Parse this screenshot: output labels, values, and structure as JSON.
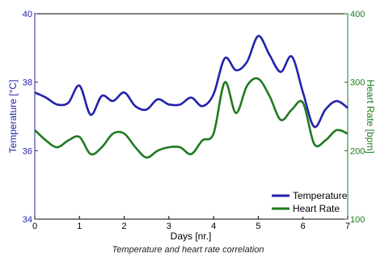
{
  "caption": "Temperature and heart rate correlation",
  "colors": {
    "temperature": "#2222aa",
    "heart_rate": "#207a20",
    "axis": "#000000"
  },
  "chart_data": {
    "type": "line",
    "xlabel": "Days [nr.]",
    "xlim": [
      0,
      7
    ],
    "x_ticks": [
      "0",
      "1",
      "2",
      "3",
      "4",
      "5",
      "6",
      "7"
    ],
    "grid": false,
    "legend_position": "bottom-right",
    "y_left": {
      "label": "Temperature [°C]",
      "lim": [
        34,
        40
      ],
      "ticks": [
        "34",
        "36",
        "38",
        "40"
      ],
      "color": "#2222aa"
    },
    "y_right": {
      "label": "Heart Rate [bpm]",
      "lim": [
        100,
        400
      ],
      "ticks": [
        "100",
        "200",
        "300",
        "400"
      ],
      "color": "#207a20"
    },
    "series": [
      {
        "name": "Temperature",
        "axis": "left",
        "color": "#2222aa",
        "x": [
          0,
          0.25,
          0.5,
          0.75,
          1.0,
          1.25,
          1.5,
          1.75,
          2.0,
          2.25,
          2.5,
          2.75,
          3.0,
          3.25,
          3.5,
          3.75,
          4.0,
          4.25,
          4.5,
          4.75,
          5.0,
          5.25,
          5.5,
          5.75,
          6.0,
          6.25,
          6.5,
          6.75,
          7.0
        ],
        "y": [
          37.7,
          37.55,
          37.35,
          37.4,
          37.9,
          37.05,
          37.6,
          37.45,
          37.7,
          37.3,
          37.2,
          37.5,
          37.35,
          37.35,
          37.55,
          37.3,
          37.65,
          38.7,
          38.35,
          38.6,
          39.35,
          38.8,
          38.3,
          38.75,
          37.7,
          36.7,
          37.2,
          37.45,
          37.25
        ]
      },
      {
        "name": "Heart Rate",
        "axis": "right",
        "color": "#207a20",
        "x": [
          0,
          0.25,
          0.5,
          0.75,
          1.0,
          1.25,
          1.5,
          1.75,
          2.0,
          2.25,
          2.5,
          2.75,
          3.0,
          3.25,
          3.5,
          3.75,
          4.0,
          4.25,
          4.5,
          4.75,
          5.0,
          5.25,
          5.5,
          5.75,
          6.0,
          6.25,
          6.5,
          6.75,
          7.0
        ],
        "y": [
          230,
          215,
          205,
          215,
          220,
          195,
          205,
          225,
          225,
          205,
          190,
          200,
          205,
          205,
          195,
          215,
          225,
          300,
          255,
          295,
          305,
          280,
          245,
          260,
          270,
          210,
          215,
          230,
          225
        ]
      }
    ]
  }
}
